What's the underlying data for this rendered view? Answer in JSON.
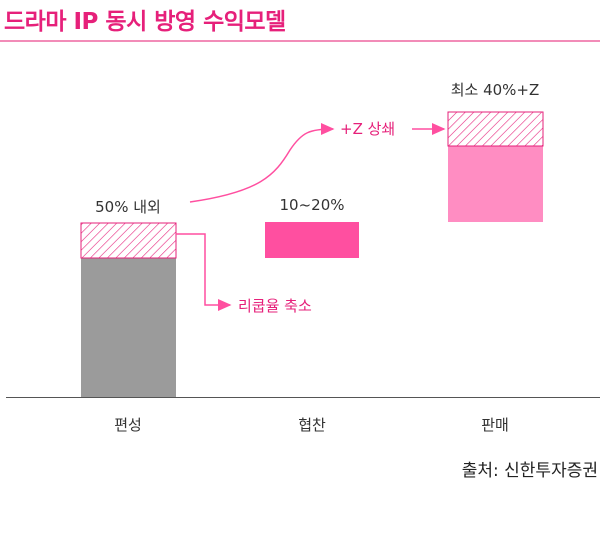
{
  "title": "드라마 IP 동시 방영 수익모델",
  "columns": [
    {
      "label": "편성",
      "value_label": "50% 내외"
    },
    {
      "label": "협찬",
      "value_label": "10~20%"
    },
    {
      "label": "판매",
      "value_label": "최소 40%+Z"
    }
  ],
  "annotations": {
    "refund_label": "리쿱율 축소",
    "upside_label": "+Z 상쇄"
  },
  "source": "출처: 신한투자증권",
  "colors": {
    "accent": "#e6207a",
    "gray_bar": "#9b9b9b",
    "pink_bar": "#ff4fa0",
    "light_pink_bar": "#ff8dc2",
    "hatch": "#e6207a"
  }
}
